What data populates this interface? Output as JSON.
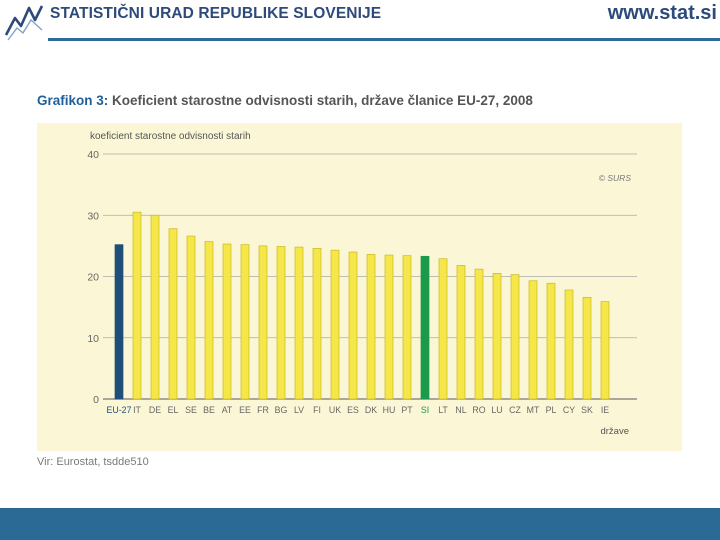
{
  "header": {
    "org_name": "STATISTIČNI URAD REPUBLIKE SLOVENIJE",
    "url": "www.stat.si"
  },
  "title_lead": "Grafikon 3:",
  "title_rest": " Koeficient starostne odvisnosti starih, države članice EU-27, 2008",
  "source": "Vir: Eurostat, tsdde510",
  "colors": {
    "eu_bar": "#1f4e79",
    "si_bar": "#1a9a4a",
    "default_bar": "#f5e64a",
    "bar_outline": "#c9b91e",
    "plot_bg": "#fbf7d6",
    "header_blue": "#2c4a7a"
  },
  "chart_data": {
    "type": "bar",
    "ylabel": "koeficient starostne odvisnosti starih",
    "xlabel": "države",
    "watermark": "© SURS",
    "ylim": [
      0,
      40
    ],
    "yticks": [
      0,
      10,
      20,
      30,
      40
    ],
    "grid": true,
    "categories": [
      "EU-27",
      "IT",
      "DE",
      "EL",
      "SE",
      "BE",
      "AT",
      "EE",
      "FR",
      "BG",
      "LV",
      "FI",
      "UK",
      "ES",
      "DK",
      "HU",
      "PT",
      "SI",
      "LT",
      "NL",
      "RO",
      "LU",
      "CZ",
      "MT",
      "PL",
      "CY",
      "SK",
      "IE"
    ],
    "values": [
      25.2,
      30.5,
      30.0,
      27.8,
      26.6,
      25.7,
      25.3,
      25.2,
      25.0,
      24.9,
      24.8,
      24.6,
      24.3,
      24.0,
      23.6,
      23.5,
      23.4,
      23.3,
      22.9,
      21.8,
      21.2,
      20.5,
      20.3,
      19.3,
      18.9,
      17.8,
      16.6,
      15.9
    ],
    "highlight": {
      "EU-27": "eu",
      "SI": "si"
    }
  }
}
